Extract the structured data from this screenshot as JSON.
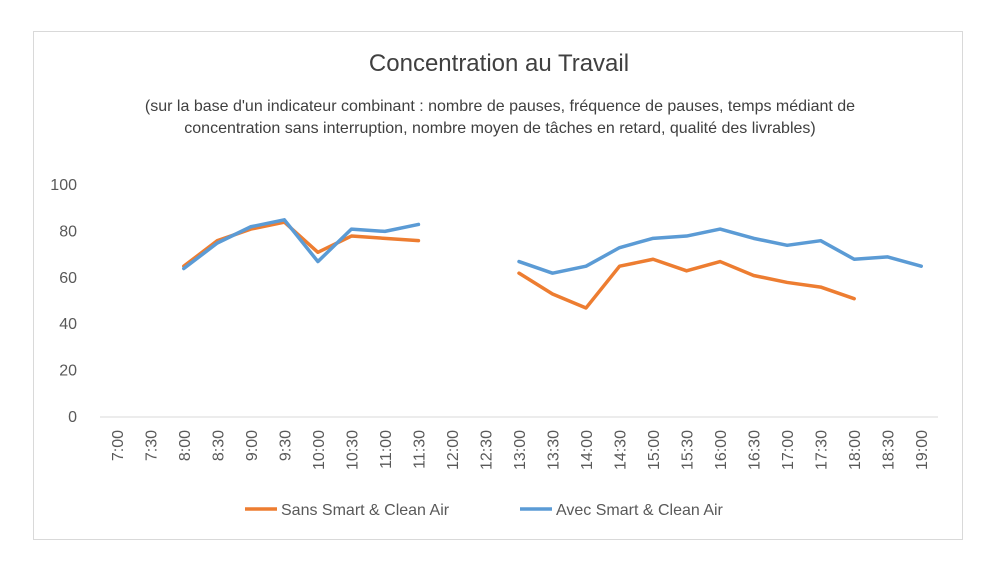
{
  "chart_data": {
    "type": "line",
    "title": "Concentration au Travail",
    "subtitle": "(sur la base d'un indicateur combinant : nombre de pauses, fréquence de pauses, temps médiant de concentration sans interruption, nombre moyen de tâches en retard, qualité des livrables)",
    "xlabel": "",
    "ylabel": "",
    "categories": [
      "7:00",
      "7:30",
      "8:00",
      "8:30",
      "9:00",
      "9:30",
      "10:00",
      "10:30",
      "11:00",
      "11:30",
      "12:00",
      "12:30",
      "13:00",
      "13:30",
      "14:00",
      "14:30",
      "15:00",
      "15:30",
      "16:00",
      "16:30",
      "17:00",
      "17:30",
      "18:00",
      "18:30",
      "19:00"
    ],
    "y_ticks": [
      0,
      20,
      40,
      60,
      80,
      100
    ],
    "ylim": [
      0,
      100
    ],
    "grid": false,
    "legend_position": "bottom",
    "series": [
      {
        "name": "Sans Smart & Clean Air",
        "color": "#ED7D31",
        "values": [
          null,
          null,
          65,
          76,
          81,
          84,
          71,
          78,
          77,
          76,
          null,
          null,
          62,
          53,
          47,
          65,
          68,
          63,
          67,
          61,
          58,
          56,
          51,
          null,
          null
        ]
      },
      {
        "name": "Avec Smart & Clean Air",
        "color": "#5B9BD5",
        "values": [
          null,
          null,
          64,
          75,
          82,
          85,
          67,
          81,
          80,
          83,
          null,
          null,
          67,
          62,
          65,
          73,
          77,
          78,
          81,
          77,
          74,
          76,
          68,
          69,
          65
        ]
      }
    ]
  }
}
